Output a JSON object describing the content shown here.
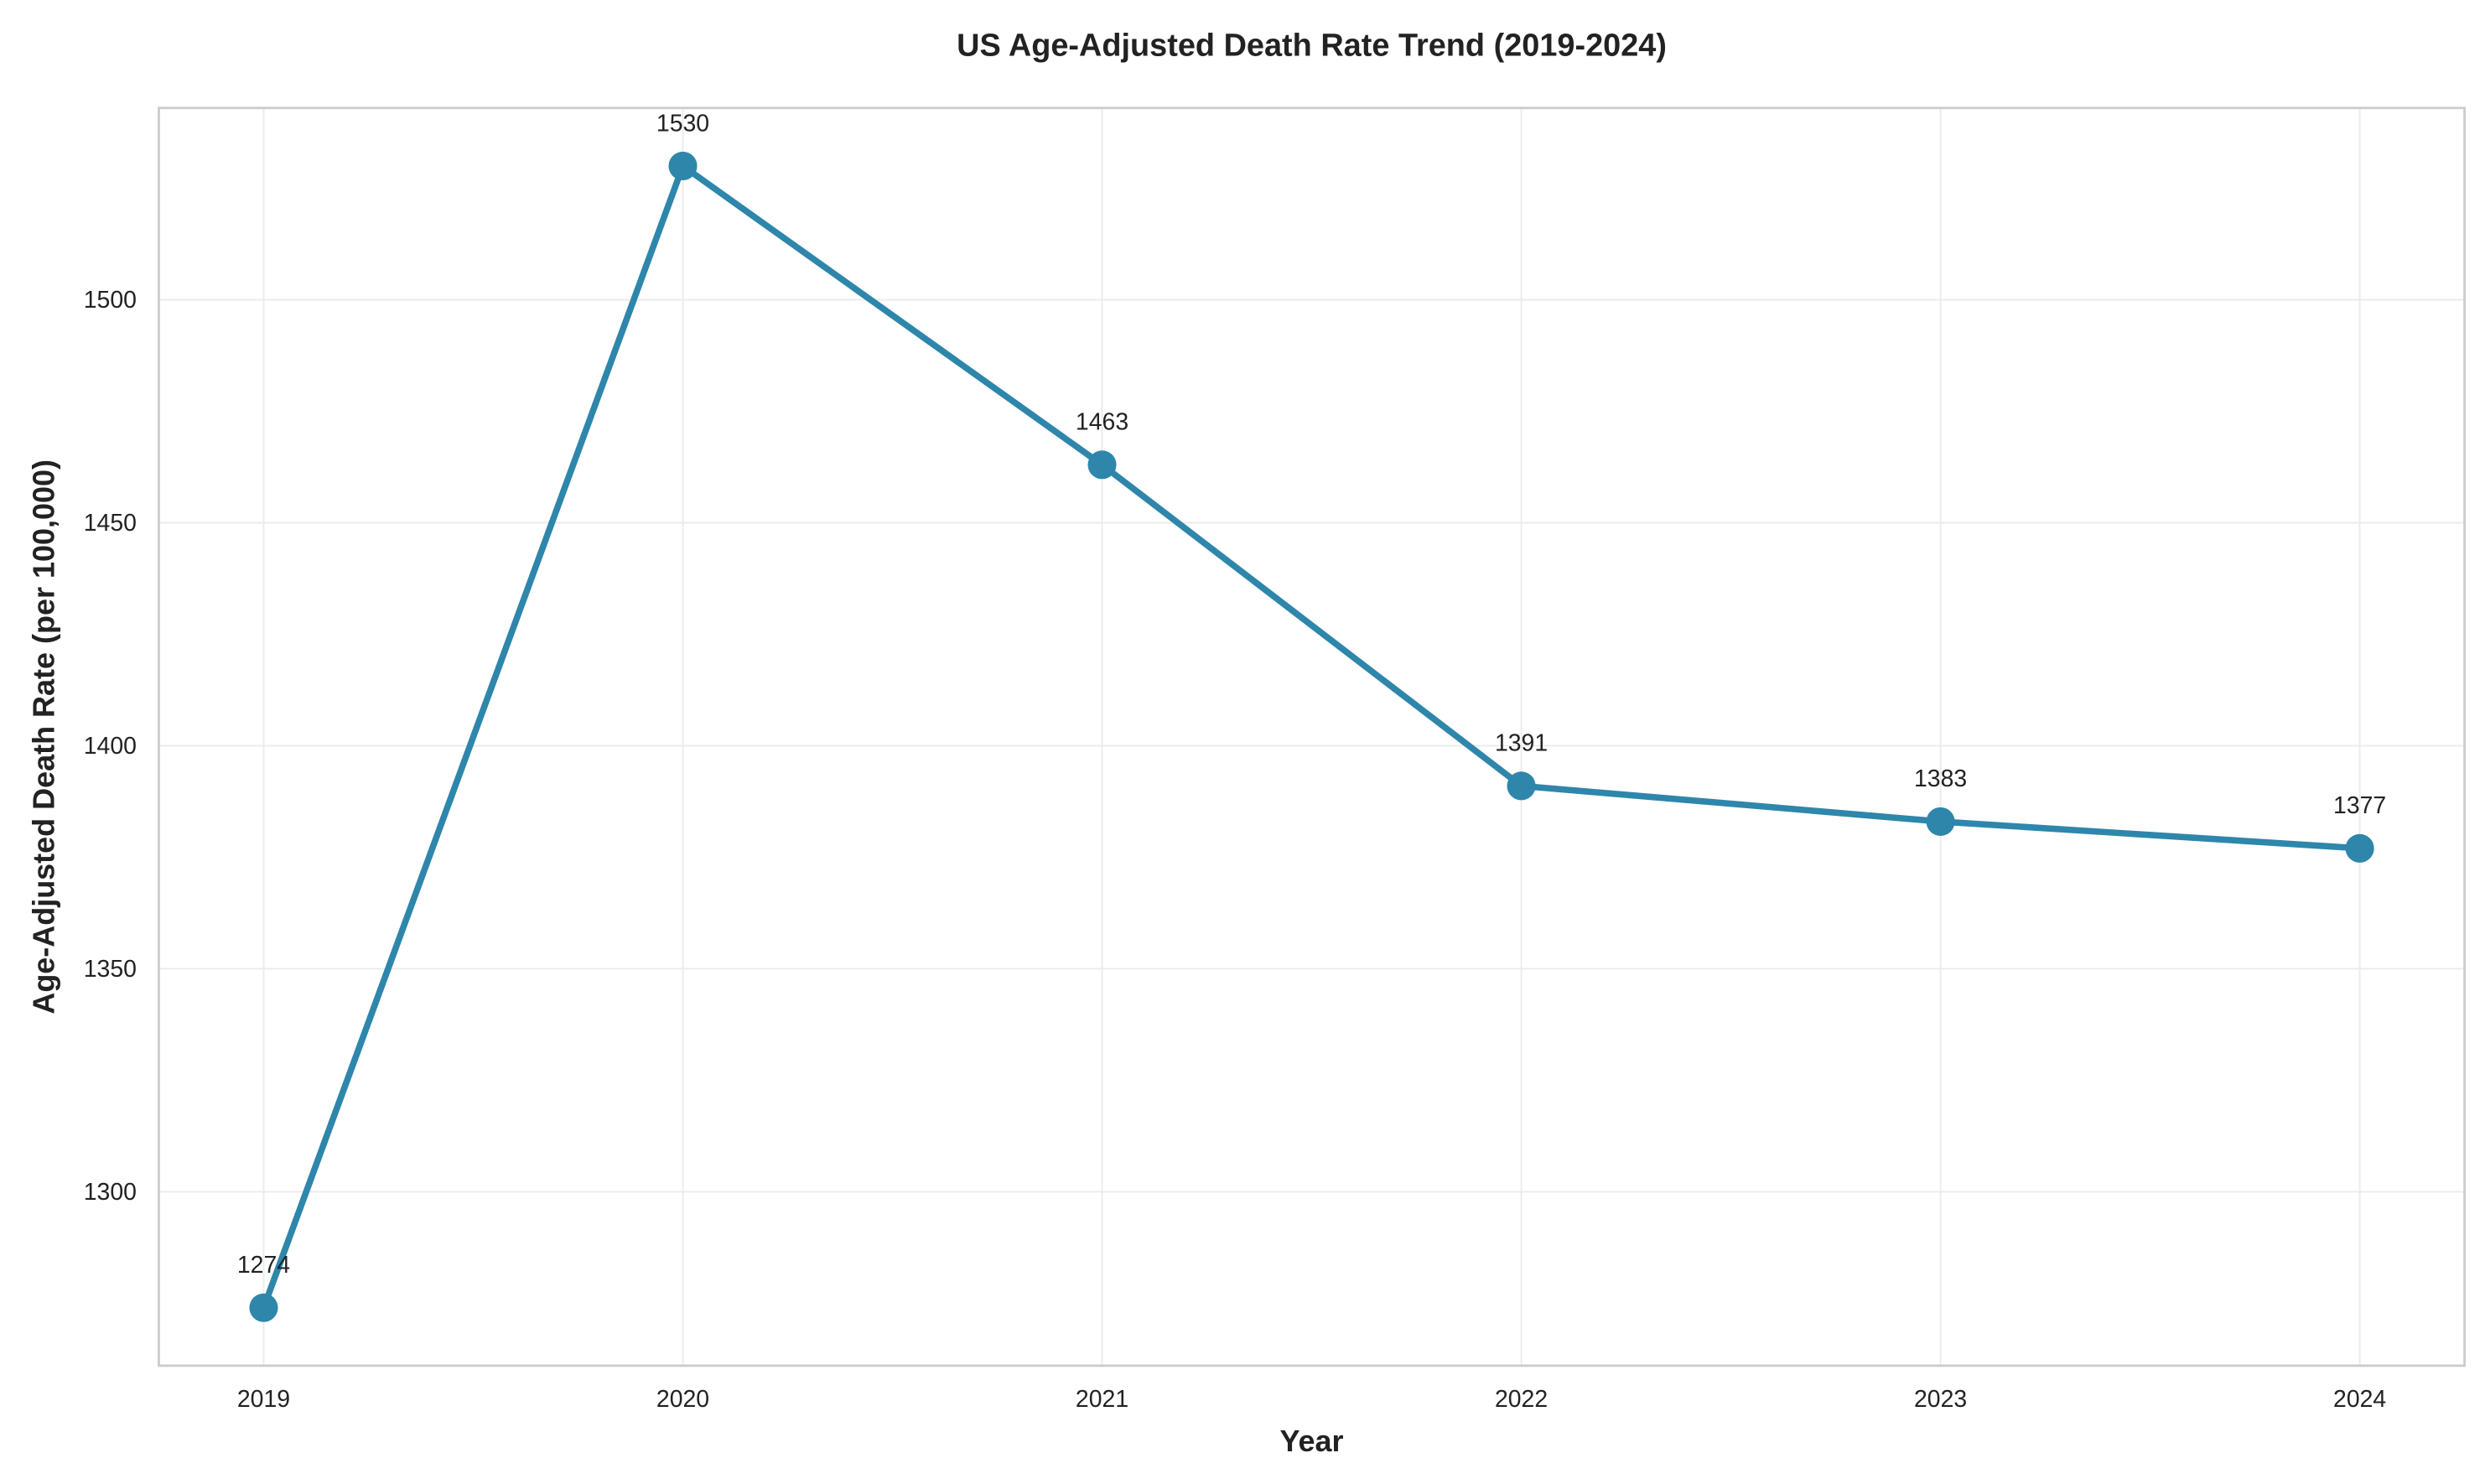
{
  "chart_data": {
    "type": "line",
    "title": "US Age-Adjusted Death Rate Trend (2019-2024)",
    "xlabel": "Year",
    "ylabel": "Age-Adjusted Death Rate (per 100,000)",
    "x": [
      2019,
      2020,
      2021,
      2022,
      2023,
      2024
    ],
    "values": [
      1274,
      1530,
      1463,
      1391,
      1383,
      1377
    ],
    "data_labels": [
      "1274",
      "1530",
      "1463",
      "1391",
      "1383",
      "1377"
    ],
    "xticks": [
      "2019",
      "2020",
      "2021",
      "2022",
      "2023",
      "2024"
    ],
    "yticks": [
      "1300",
      "1350",
      "1400",
      "1450",
      "1500"
    ],
    "xlim": [
      2018.75,
      2024.25
    ],
    "ylim": [
      1261,
      1543
    ],
    "grid": true,
    "legend": "none",
    "colors": {
      "line": "#2E86AB",
      "grid": "#EBEBEB",
      "frame": "#CCCCCC"
    }
  }
}
